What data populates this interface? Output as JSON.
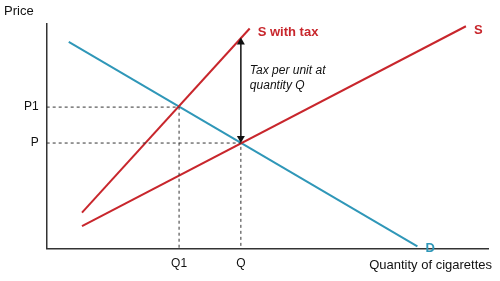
{
  "chart_data": {
    "type": "line",
    "x_label": "Quantity of cigarettes",
    "y_label": "Price",
    "xlim": [
      0,
      100
    ],
    "ylim": [
      0,
      100
    ],
    "xticks": [
      {
        "value": 30,
        "label": "Q1"
      },
      {
        "value": 44,
        "label": "Q"
      }
    ],
    "yticks": [
      {
        "value": 63,
        "label": "P1"
      },
      {
        "value": 47,
        "label": "P"
      }
    ],
    "grid": false,
    "series": [
      {
        "name": "S with tax",
        "color": "#c8262c",
        "x": [
          8,
          46
        ],
        "values": [
          16,
          98
        ]
      },
      {
        "name": "S",
        "color": "#c8262c",
        "x": [
          8,
          95
        ],
        "values": [
          10,
          99
        ]
      },
      {
        "name": "D",
        "color": "#2f97b8",
        "x": [
          5,
          84
        ],
        "values": [
          92,
          1
        ]
      }
    ],
    "annotations": [
      {
        "text": "Tax per unit at quantity Q",
        "x": 44,
        "y_from": 47,
        "y_to": 94
      }
    ]
  }
}
